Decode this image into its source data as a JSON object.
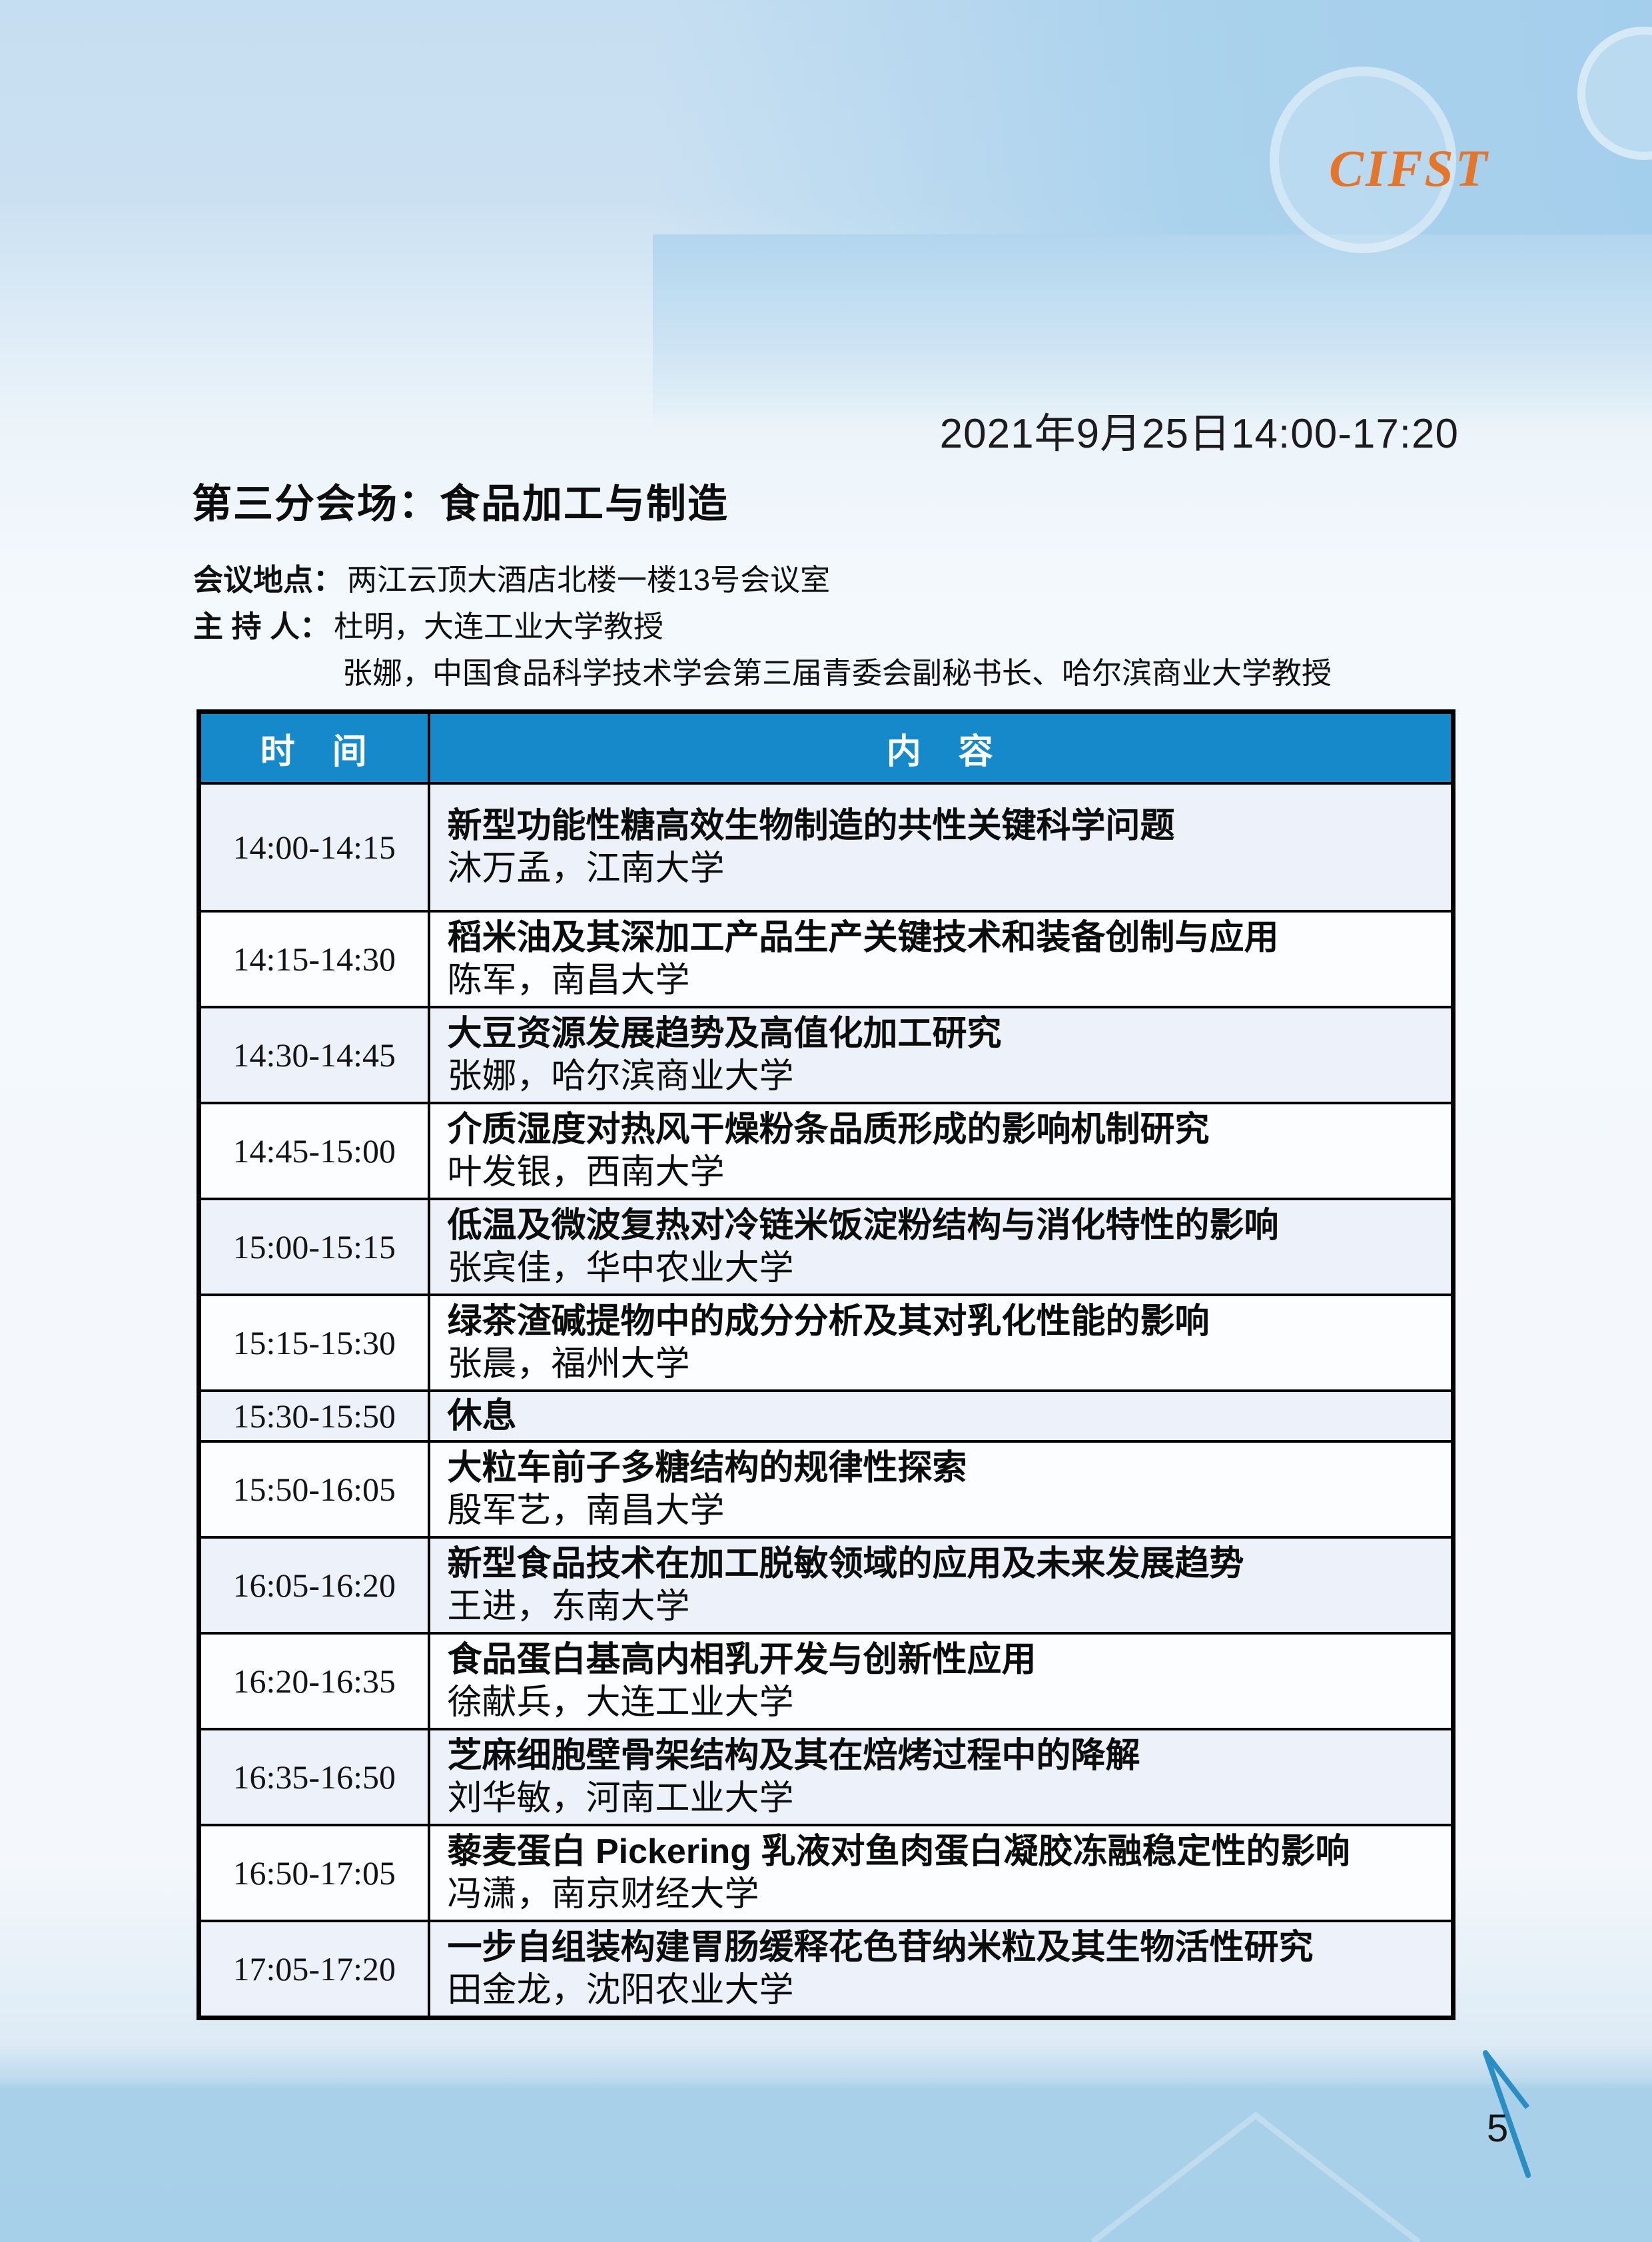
{
  "logo": {
    "text": "CIFST"
  },
  "page": {
    "date": "2021年9月25日14:00-17:20",
    "title": "第三分会场：食品加工与制造",
    "page_number": "5"
  },
  "info": {
    "location_label": "会议地点",
    "colon": "：",
    "location_value": "两江云顶大酒店北楼一楼13号会议室",
    "host_label": "主 持 人",
    "host1": "杜明，大连工业大学教授",
    "host2": "张娜，中国食品科学技术学会第三届青委会副秘书长、哈尔滨商业大学教授"
  },
  "colors": {
    "header_blue": "#1689cb",
    "row_tint": "#edf1f9",
    "logo_orange": "#e4752a",
    "bottom_band_blue": "#a9d0e9",
    "line_blue": "#2a8dc4"
  },
  "table": {
    "headers": {
      "time": "时　间",
      "content": "内　容"
    },
    "rows": [
      {
        "time": "14:00-14:15",
        "title": "新型功能性糖高效生物制造的共性关键科学问题",
        "speaker": "沐万孟，江南大学",
        "type": "talk"
      },
      {
        "time": "14:15-14:30",
        "title": "稻米油及其深加工产品生产关键技术和装备创制与应用",
        "speaker": "陈军，南昌大学",
        "type": "talk"
      },
      {
        "time": "14:30-14:45",
        "title": "大豆资源发展趋势及高值化加工研究",
        "speaker": "张娜，哈尔滨商业大学",
        "type": "talk"
      },
      {
        "time": "14:45-15:00",
        "title": "介质湿度对热风干燥粉条品质形成的影响机制研究",
        "speaker": "叶发银，西南大学",
        "type": "talk"
      },
      {
        "time": "15:00-15:15",
        "title": "低温及微波复热对冷链米饭淀粉结构与消化特性的影响",
        "speaker": "张宾佳，华中农业大学",
        "type": "talk"
      },
      {
        "time": "15:15-15:30",
        "title": "绿茶渣碱提物中的成分分析及其对乳化性能的影响",
        "speaker": "张晨，福州大学",
        "type": "talk"
      },
      {
        "time": "15:30-15:50",
        "title": "休息",
        "speaker": "",
        "type": "break"
      },
      {
        "time": "15:50-16:05",
        "title": "大粒车前子多糖结构的规律性探索",
        "speaker": "殷军艺，南昌大学",
        "type": "talk"
      },
      {
        "time": "16:05-16:20",
        "title": "新型食品技术在加工脱敏领域的应用及未来发展趋势",
        "speaker": "王进，东南大学",
        "type": "talk"
      },
      {
        "time": "16:20-16:35",
        "title": "食品蛋白基高内相乳开发与创新性应用",
        "speaker": "徐献兵，大连工业大学",
        "type": "talk"
      },
      {
        "time": "16:35-16:50",
        "title": "芝麻细胞壁骨架结构及其在焙烤过程中的降解",
        "speaker": "刘华敏，河南工业大学",
        "type": "talk"
      },
      {
        "time": "16:50-17:05",
        "title": "藜麦蛋白 Pickering 乳液对鱼肉蛋白凝胶冻融稳定性的影响",
        "speaker": "冯潇，南京财经大学",
        "type": "talk"
      },
      {
        "time": "17:05-17:20",
        "title": "一步自组装构建胃肠缓释花色苷纳米粒及其生物活性研究",
        "speaker": "田金龙，沈阳农业大学",
        "type": "talk"
      }
    ]
  }
}
